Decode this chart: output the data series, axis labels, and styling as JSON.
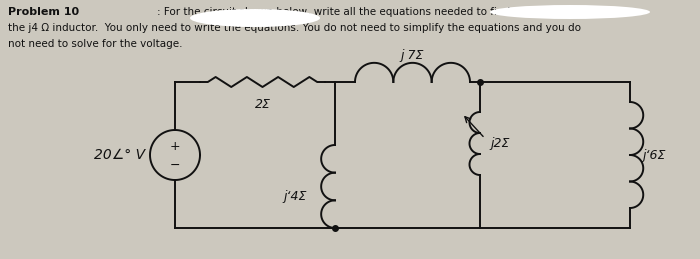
{
  "bg_color": "#ccc8be",
  "text_color": "#111111",
  "title_bold": "Problem 10",
  "source_label": "20∠° V",
  "r_label": "2Σ",
  "ind1_label": "j 7Σ",
  "ind2_label": "j‘4Σ",
  "ind3_label": "j2Σ",
  "ind4_label": "j‘6Σ",
  "redact1_color": "#e8e4de",
  "redact2_color": "#e8e4de",
  "figsize": [
    7.0,
    2.59
  ],
  "dpi": 100
}
